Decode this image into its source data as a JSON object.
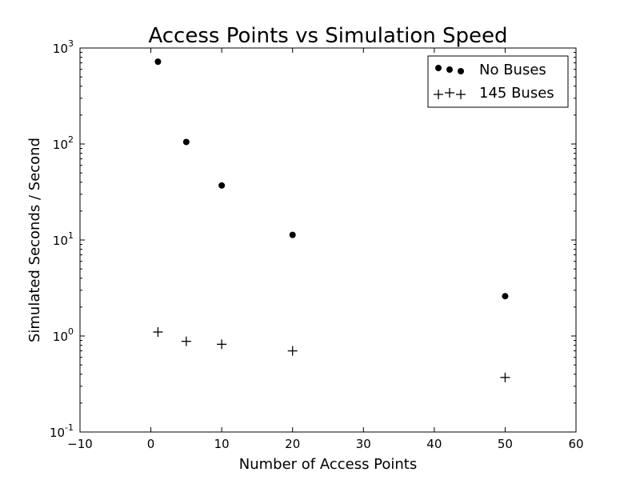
{
  "chart_data": {
    "type": "scatter",
    "title": "Access Points vs Simulation Speed",
    "xlabel": "Number of Access Points",
    "ylabel": "Simulated Seconds / Second",
    "xlim": [
      -10,
      60
    ],
    "ylim": [
      0.1,
      1000
    ],
    "yscale": "log",
    "x_ticks": [
      -10,
      0,
      10,
      20,
      30,
      40,
      50,
      60
    ],
    "y_ticks": [
      {
        "value": 0.1,
        "base": "10",
        "exp": "-1"
      },
      {
        "value": 1,
        "base": "10",
        "exp": "0"
      },
      {
        "value": 10,
        "base": "10",
        "exp": "1"
      },
      {
        "value": 100,
        "base": "10",
        "exp": "2"
      },
      {
        "value": 1000,
        "base": "10",
        "exp": "3"
      }
    ],
    "grid": false,
    "legend_position": "top-right",
    "series": [
      {
        "name": "No Buses",
        "marker": "circle",
        "color": "#000000",
        "points": [
          {
            "x": 1,
            "y": 720
          },
          {
            "x": 5,
            "y": 105
          },
          {
            "x": 10,
            "y": 37
          },
          {
            "x": 20,
            "y": 11.3
          },
          {
            "x": 50,
            "y": 2.6
          }
        ]
      },
      {
        "name": "145 Buses",
        "marker": "plus",
        "color": "#000000",
        "points": [
          {
            "x": 1,
            "y": 1.1
          },
          {
            "x": 5,
            "y": 0.88
          },
          {
            "x": 10,
            "y": 0.82
          },
          {
            "x": 20,
            "y": 0.7
          },
          {
            "x": 50,
            "y": 0.37
          }
        ]
      }
    ]
  }
}
